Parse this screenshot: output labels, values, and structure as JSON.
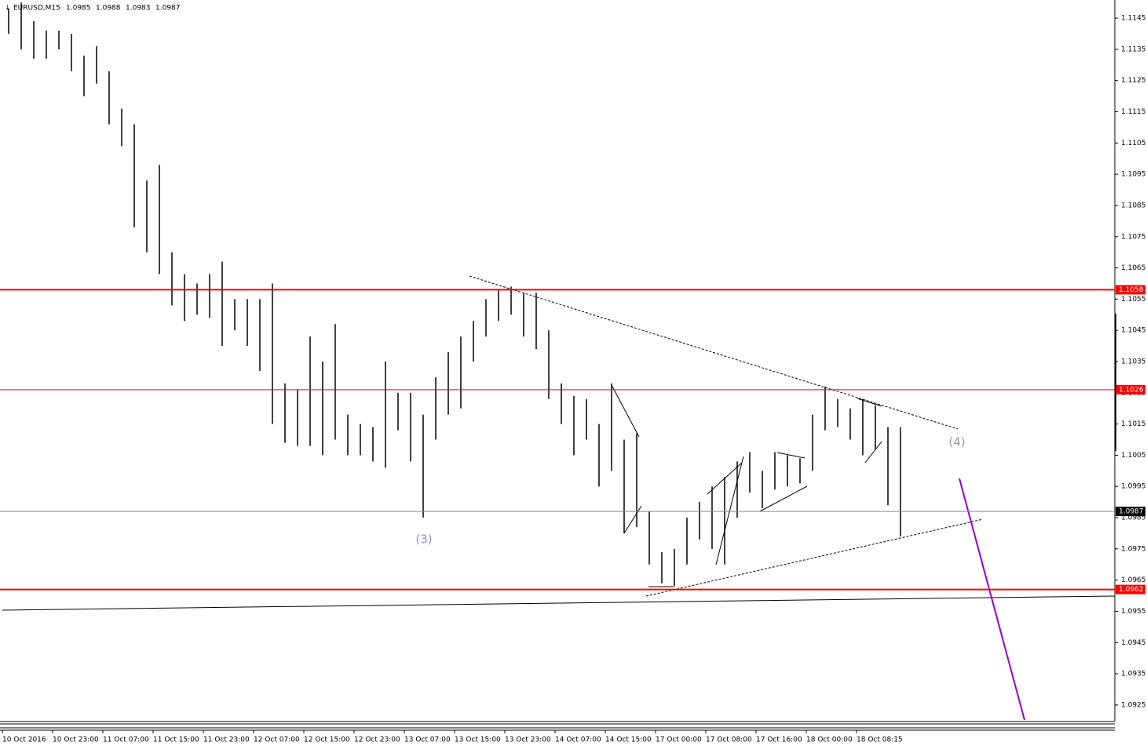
{
  "chart_data": {
    "type": "ohlc_bars",
    "symbol": "EURUSD,M15",
    "ohlc": [
      1.0985,
      1.0988,
      1.0983,
      1.0987
    ],
    "x_labels": [
      "10 Oct 2016",
      "10 Oct 23:00",
      "11 Oct 07:00",
      "11 Oct 15:00",
      "11 Oct 23:00",
      "12 Oct 07:00",
      "12 Oct 15:00",
      "12 Oct 23:00",
      "13 Oct 07:00",
      "13 Oct 15:00",
      "13 Oct 23:00",
      "14 Oct 07:00",
      "14 Oct 15:00",
      "17 Oct 00:00",
      "17 Oct 08:00",
      "17 Oct 16:00",
      "18 Oct 00:00",
      "18 Oct 08:15"
    ],
    "high": [
      1.1148,
      1.115,
      1.1144,
      1.1141,
      1.1141,
      1.114,
      1.1133,
      1.1136,
      1.1128,
      1.1116,
      1.1111,
      1.1093,
      1.1098,
      1.107,
      1.1063,
      1.106,
      1.1063,
      1.1067,
      1.1055,
      1.1055,
      1.1055,
      1.106,
      1.1028,
      1.1026,
      1.1043,
      1.1035,
      1.1047,
      1.1018,
      1.1015,
      1.1014,
      1.1035,
      1.1025,
      1.1025,
      1.1018,
      1.103,
      1.1038,
      1.1043,
      1.1048,
      1.1055,
      1.1058,
      1.1059,
      1.1057,
      1.1057,
      1.1045,
      1.1028,
      1.1024,
      1.1023,
      1.1015,
      1.1028,
      1.101,
      1.1012,
      1.0987,
      1.0974,
      1.0975,
      1.0985,
      1.099,
      1.0995,
      1.0998,
      1.1003,
      1.1006,
      1.1,
      1.1006,
      1.1005,
      1.1004,
      1.1018,
      1.1027,
      1.1023,
      1.102,
      1.1023,
      1.1021,
      1.1014,
      1.1014
    ],
    "low": [
      1.114,
      1.1135,
      1.1132,
      1.1132,
      1.1135,
      1.1128,
      1.112,
      1.1124,
      1.1111,
      1.1104,
      1.1078,
      1.107,
      1.1063,
      1.1053,
      1.1048,
      1.105,
      1.1049,
      1.104,
      1.1045,
      1.104,
      1.1032,
      1.1015,
      1.1009,
      1.1008,
      1.1008,
      1.1005,
      1.101,
      1.1005,
      1.1005,
      1.1003,
      1.1001,
      1.1013,
      1.1003,
      1.0985,
      1.101,
      1.1018,
      1.102,
      1.1035,
      1.1043,
      1.1048,
      1.105,
      1.1043,
      1.1039,
      1.1023,
      1.1015,
      1.1005,
      1.101,
      1.0995,
      1.1,
      1.098,
      1.0982,
      1.097,
      1.0964,
      1.0963,
      1.097,
      1.0978,
      1.0975,
      1.097,
      1.0985,
      1.0993,
      1.0988,
      1.0994,
      1.0995,
      1.0996,
      1.1,
      1.1013,
      1.1014,
      1.101,
      1.1005,
      1.1007,
      1.0989,
      1.0979
    ],
    "color": "#000000",
    "ylim": [
      1.09197,
      1.11508
    ],
    "yticks": [
      1.1145,
      1.1135,
      1.1125,
      1.1115,
      1.1105,
      1.1095,
      1.1085,
      1.1075,
      1.1065,
      1.1055,
      1.1045,
      1.1035,
      1.1025,
      1.1015,
      1.1005,
      1.0995,
      1.0985,
      1.0975,
      1.0965,
      1.0955,
      1.0945,
      1.0935,
      1.0925
    ],
    "levels": [
      1.1058,
      1.1026,
      1.0962
    ],
    "level_color": "#ff0000",
    "current_price": 1.0987,
    "current_color": "#6f8fb0",
    "annotations": [
      "(3)",
      "(4)"
    ]
  }
}
